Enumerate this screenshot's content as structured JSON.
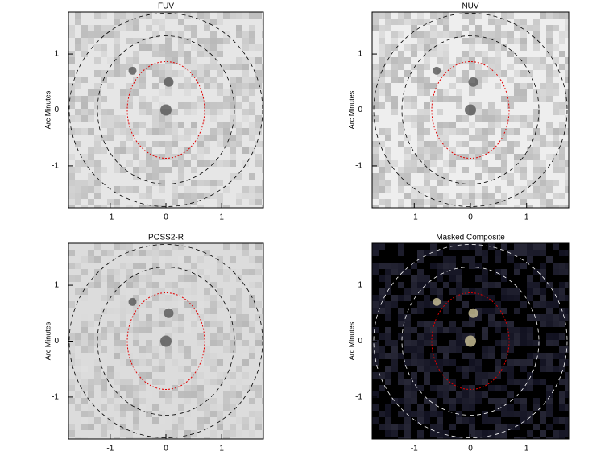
{
  "chart_data": [
    {
      "type": "image",
      "title": "FUV",
      "ylabel": "Arc Minutes",
      "xlim": [
        -1.75,
        1.75
      ],
      "ylim": [
        -1.75,
        1.75
      ],
      "xticks": [
        -1,
        0,
        1
      ],
      "yticks": [
        -1,
        0,
        1
      ],
      "background": "#e6e6e6",
      "ellipse_color": "#000000"
    },
    {
      "type": "image",
      "title": "NUV",
      "ylabel": "Arc Minutes",
      "xlim": [
        -1.75,
        1.75
      ],
      "ylim": [
        -1.75,
        1.75
      ],
      "xticks": [
        -1,
        0,
        1
      ],
      "yticks": [
        -1,
        0,
        1
      ],
      "background": "#eeeeee",
      "ellipse_color": "#000000"
    },
    {
      "type": "image",
      "title": "POSS2-R",
      "ylabel": "Arc Minutes",
      "xlim": [
        -1.75,
        1.75
      ],
      "ylim": [
        -1.75,
        1.75
      ],
      "xticks": [
        -1,
        0,
        1
      ],
      "yticks": [
        -1,
        0,
        1
      ],
      "background": "#dcdcdc",
      "ellipse_color": "#000000"
    },
    {
      "type": "image",
      "title": "Masked Composite",
      "ylabel": "Arc Minutes",
      "xlim": [
        -1.75,
        1.75
      ],
      "ylim": [
        -1.75,
        1.75
      ],
      "xticks": [
        -1,
        0,
        1
      ],
      "yticks": [
        -1,
        0,
        1
      ],
      "background": "#000000",
      "ellipse_color": "#ffffff"
    }
  ]
}
